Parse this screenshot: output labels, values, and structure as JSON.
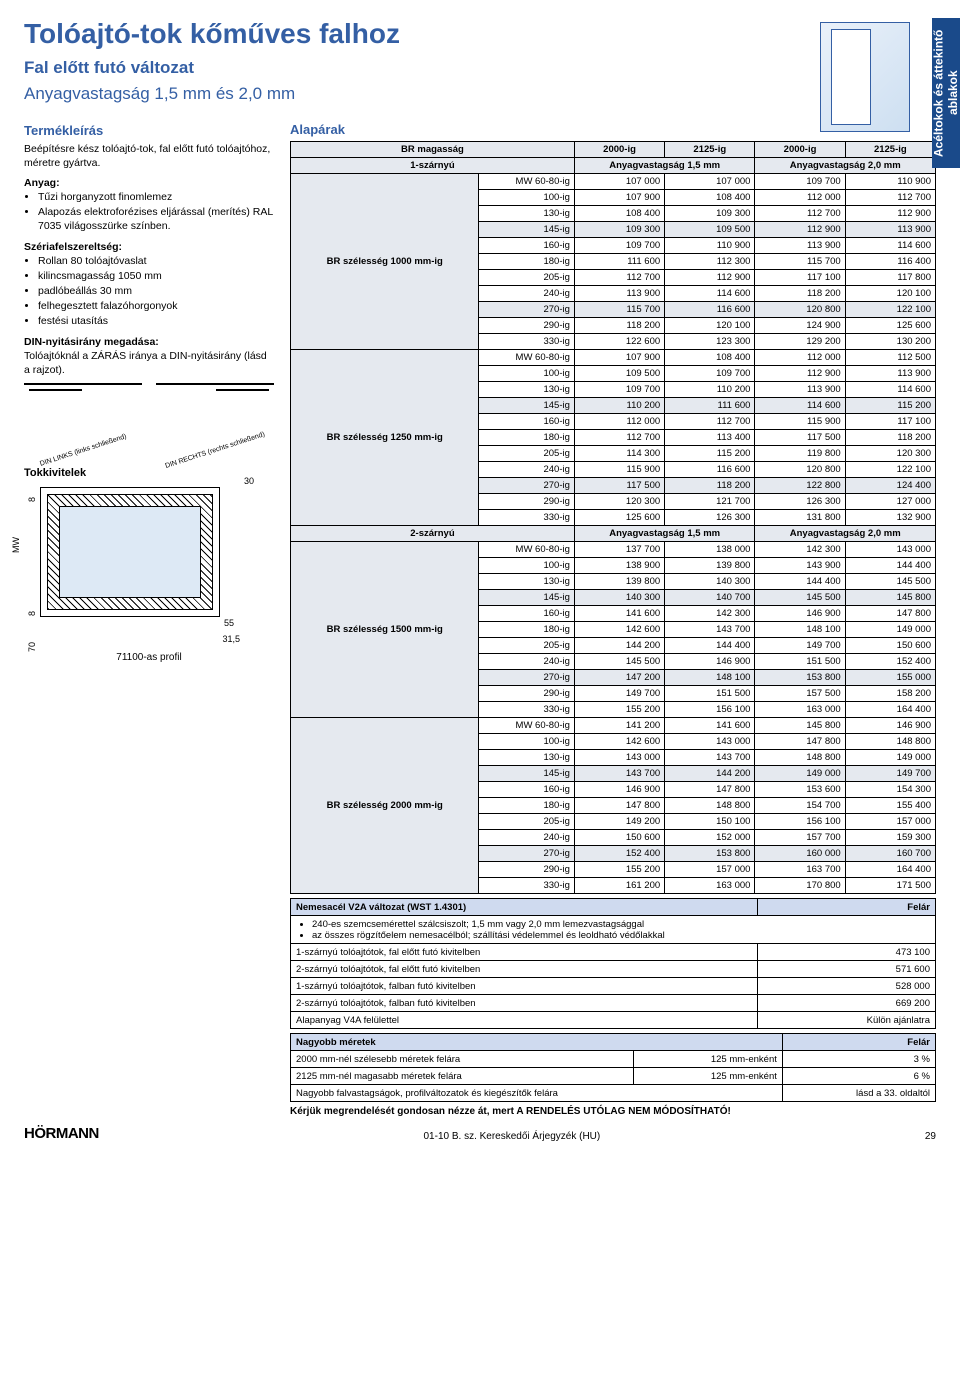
{
  "sideTab": "Acéltokok és\náttekintő ablakok",
  "title": "Tolóajtó-tok kőműves falhoz",
  "subtitle1": "Fal előtt futó változat",
  "subtitle2": "Anyagvastagság 1,5 mm és 2,0 mm",
  "left": {
    "descHead": "Termékleírás",
    "descText": "Beépítésre kész tolóajtó-tok, fal előtt futó tolóajtóhoz, méretre gyártva.",
    "anyagLabel": "Anyag:",
    "anyagItems": [
      "Tűzi horganyzott finomlemez",
      "Alapozás elektroforézises eljárással (merítés) RAL 7035 világosszürke színben."
    ],
    "szeriaLabel": "Szériafelszereltség:",
    "szeriaItems": [
      "Rollan 80 tolóajtóvaslat",
      "kilincsmagasság 1050 mm",
      "padlóbeállás 30 mm",
      "felhegesztett falazóhorgonyok",
      "festési utasítás"
    ],
    "dinLabel": "DIN-nyitásirány megadása:",
    "dinText": "Tolóajtóknál a ZÁRÁS iránya a DIN-nyitásirány (lásd a rajzot).",
    "dinLeft": "DIN LINKS\n(links schließend)",
    "dinRight": "DIN RECHTS\n(rechts schließend)",
    "tokkHead": "Tokkivitelek",
    "dims": {
      "mw": "MW",
      "d8": "8",
      "d70": "70",
      "d30": "30",
      "d55": "55",
      "d315": "31,5"
    },
    "profileName": "71100-as profil"
  },
  "price": {
    "head": "Alapárak",
    "colBR": "BR magasság",
    "colW": [
      "2000-ig",
      "2125-ig",
      "2000-ig",
      "2125-ig"
    ],
    "thick15": "Anyagvastagság 1,5 mm",
    "thick20": "Anyagvastagság 2,0 mm",
    "oneWing": "1-szárnyú",
    "twoWing": "2-szárnyú",
    "groups": [
      {
        "label": "BR szélesség\n1000 mm-ig",
        "rows": [
          [
            "MW 60-80-ig",
            "107 000",
            "107 000",
            "109 700",
            "110 900"
          ],
          [
            "100-ig",
            "107 900",
            "108 400",
            "112 000",
            "112 700"
          ],
          [
            "130-ig",
            "108 400",
            "109 300",
            "112 700",
            "112 900"
          ],
          [
            "145-ig",
            "109 300",
            "109 500",
            "112 900",
            "113 900",
            true
          ],
          [
            "160-ig",
            "109 700",
            "110 900",
            "113 900",
            "114 600"
          ],
          [
            "180-ig",
            "111 600",
            "112 300",
            "115 700",
            "116 400"
          ],
          [
            "205-ig",
            "112 700",
            "112 900",
            "117 100",
            "117 800"
          ],
          [
            "240-ig",
            "113 900",
            "114 600",
            "118 200",
            "120 100"
          ],
          [
            "270-ig",
            "115 700",
            "116 600",
            "120 800",
            "122 100",
            true
          ],
          [
            "290-ig",
            "118 200",
            "120 100",
            "124 900",
            "125 600"
          ],
          [
            "330-ig",
            "122 600",
            "123 300",
            "129 200",
            "130 200"
          ]
        ]
      },
      {
        "label": "BR szélesség\n1250 mm-ig",
        "rows": [
          [
            "MW 60-80-ig",
            "107 900",
            "108 400",
            "112 000",
            "112 500"
          ],
          [
            "100-ig",
            "109 500",
            "109 700",
            "112 900",
            "113 900"
          ],
          [
            "130-ig",
            "109 700",
            "110 200",
            "113 900",
            "114 600"
          ],
          [
            "145-ig",
            "110 200",
            "111 600",
            "114 600",
            "115 200",
            true
          ],
          [
            "160-ig",
            "112 000",
            "112 700",
            "115 900",
            "117 100"
          ],
          [
            "180-ig",
            "112 700",
            "113 400",
            "117 500",
            "118 200"
          ],
          [
            "205-ig",
            "114 300",
            "115 200",
            "119 800",
            "120 300"
          ],
          [
            "240-ig",
            "115 900",
            "116 600",
            "120 800",
            "122 100"
          ],
          [
            "270-ig",
            "117 500",
            "118 200",
            "122 800",
            "124 400",
            true
          ],
          [
            "290-ig",
            "120 300",
            "121 700",
            "126 300",
            "127 000"
          ],
          [
            "330-ig",
            "125 600",
            "126 300",
            "131 800",
            "132 900"
          ]
        ]
      }
    ],
    "groups2": [
      {
        "label": "BR szélesség\n1500 mm-ig",
        "rows": [
          [
            "MW 60-80-ig",
            "137 700",
            "138 000",
            "142 300",
            "143 000"
          ],
          [
            "100-ig",
            "138 900",
            "139 800",
            "143 900",
            "144 400"
          ],
          [
            "130-ig",
            "139 800",
            "140 300",
            "144 400",
            "145 500"
          ],
          [
            "145-ig",
            "140 300",
            "140 700",
            "145 500",
            "145 800",
            true
          ],
          [
            "160-ig",
            "141 600",
            "142 300",
            "146 900",
            "147 800"
          ],
          [
            "180-ig",
            "142 600",
            "143 700",
            "148 100",
            "149 000"
          ],
          [
            "205-ig",
            "144 200",
            "144 400",
            "149 700",
            "150 600"
          ],
          [
            "240-ig",
            "145 500",
            "146 900",
            "151 500",
            "152 400"
          ],
          [
            "270-ig",
            "147 200",
            "148 100",
            "153 800",
            "155 000",
            true
          ],
          [
            "290-ig",
            "149 700",
            "151 500",
            "157 500",
            "158 200"
          ],
          [
            "330-ig",
            "155 200",
            "156 100",
            "163 000",
            "164 400"
          ]
        ]
      },
      {
        "label": "BR szélesség\n2000 mm-ig",
        "rows": [
          [
            "MW 60-80-ig",
            "141 200",
            "141 600",
            "145 800",
            "146 900"
          ],
          [
            "100-ig",
            "142 600",
            "143 000",
            "147 800",
            "148 800"
          ],
          [
            "130-ig",
            "143 000",
            "143 700",
            "148 800",
            "149 000"
          ],
          [
            "145-ig",
            "143 700",
            "144 200",
            "149 000",
            "149 700",
            true
          ],
          [
            "160-ig",
            "146 900",
            "147 800",
            "153 600",
            "154 300"
          ],
          [
            "180-ig",
            "147 800",
            "148 800",
            "154 700",
            "155 400"
          ],
          [
            "205-ig",
            "149 200",
            "150 100",
            "156 100",
            "157 000"
          ],
          [
            "240-ig",
            "150 600",
            "152 000",
            "157 700",
            "159 300"
          ],
          [
            "270-ig",
            "152 400",
            "153 800",
            "160 000",
            "160 700",
            true
          ],
          [
            "290-ig",
            "155 200",
            "157 000",
            "163 700",
            "164 400"
          ],
          [
            "330-ig",
            "161 200",
            "163 000",
            "170 800",
            "171 500"
          ]
        ]
      }
    ]
  },
  "v2a": {
    "title": "Nemesacél V2A változat (WST 1.4301)",
    "felar": "Felár",
    "bullets": [
      "240-es szemcsemérettel szálcsiszolt; 1,5 mm vagy 2,0 mm lemezvastagsággal",
      "az összes rögzítőelem nemesacélból; szállítási védelemmel és leoldható védőlakkal"
    ],
    "rows": [
      [
        "1-szárnyú tolóajtótok, fal előtt futó kivitelben",
        "473 100"
      ],
      [
        "2-szárnyú tolóajtótok, fal előtt futó kivitelben",
        "571 600"
      ],
      [
        "1-szárnyú tolóajtótok, falban futó kivitelben",
        "528 000"
      ],
      [
        "2-szárnyú tolóajtótok, falban futó kivitelben",
        "669 200"
      ]
    ],
    "v4a": [
      "Alapanyag V4A felülettel",
      "Külön ajánlatra"
    ]
  },
  "bigger": {
    "title": "Nagyobb méretek",
    "felar": "Felár",
    "rows": [
      [
        "2000 mm-nél szélesebb méretek felára",
        "125 mm-enként",
        "3 %"
      ],
      [
        "2125 mm-nél magasabb méretek felára",
        "125 mm-enként",
        "6 %"
      ]
    ],
    "extraRow": [
      "Nagyobb falvastagságok, profilváltozatok és kiegészítők felára",
      "lásd a 33. oldaltól"
    ]
  },
  "warning": "Kérjük megrendelését gondosan nézze át, mert A RENDELÉS UTÓLAG NEM MÓDOSÍTHATÓ!",
  "footer": {
    "brand": "HÖRMANN",
    "mid": "01-10 B. sz. Kereskedői Árjegyzék (HU)",
    "page": "29"
  },
  "colors": {
    "brandBlue": "#345fa4",
    "headerShade": "#cfdaef",
    "altRow": "#e5e9ef",
    "sideTabBg": "#1a4a8a"
  }
}
